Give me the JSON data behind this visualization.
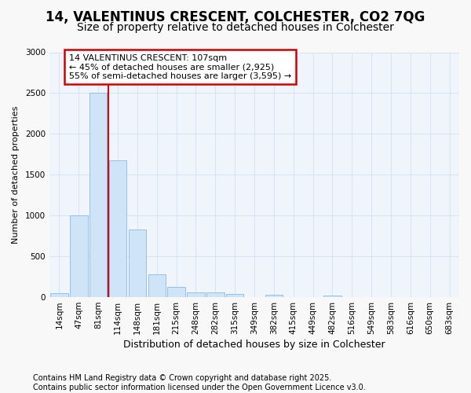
{
  "title1": "14, VALENTINUS CRESCENT, COLCHESTER, CO2 7QG",
  "title2": "Size of property relative to detached houses in Colchester",
  "xlabel": "Distribution of detached houses by size in Colchester",
  "ylabel": "Number of detached properties",
  "categories": [
    "14sqm",
    "47sqm",
    "81sqm",
    "114sqm",
    "148sqm",
    "181sqm",
    "215sqm",
    "248sqm",
    "282sqm",
    "315sqm",
    "349sqm",
    "382sqm",
    "415sqm",
    "449sqm",
    "482sqm",
    "516sqm",
    "549sqm",
    "583sqm",
    "616sqm",
    "650sqm",
    "683sqm"
  ],
  "values": [
    50,
    1005,
    2500,
    1680,
    830,
    280,
    130,
    60,
    55,
    35,
    0,
    25,
    0,
    0,
    20,
    0,
    0,
    0,
    0,
    0,
    0
  ],
  "bar_color": "#d0e4f7",
  "bar_edge_color": "#8db8e0",
  "vline_pos": 2.5,
  "vline_color": "#cc0000",
  "annotation_text": "14 VALENTINUS CRESCENT: 107sqm\n← 45% of detached houses are smaller (2,925)\n55% of semi-detached houses are larger (3,595) →",
  "annotation_box_facecolor": "#ffffff",
  "annotation_box_edgecolor": "#cc0000",
  "ylim_max": 3000,
  "yticks": [
    0,
    500,
    1000,
    1500,
    2000,
    2500,
    3000
  ],
  "fig_bg_color": "#f8f8f8",
  "plot_bg_color": "#f0f5fc",
  "grid_color": "#d8e4f0",
  "title1_fontsize": 12,
  "title2_fontsize": 10,
  "xlabel_fontsize": 9,
  "ylabel_fontsize": 8,
  "tick_fontsize": 7.5,
  "annot_fontsize": 8,
  "footer_fontsize": 7,
  "footer_line1": "Contains HM Land Registry data © Crown copyright and database right 2025.",
  "footer_line2": "Contains public sector information licensed under the Open Government Licence v3.0."
}
